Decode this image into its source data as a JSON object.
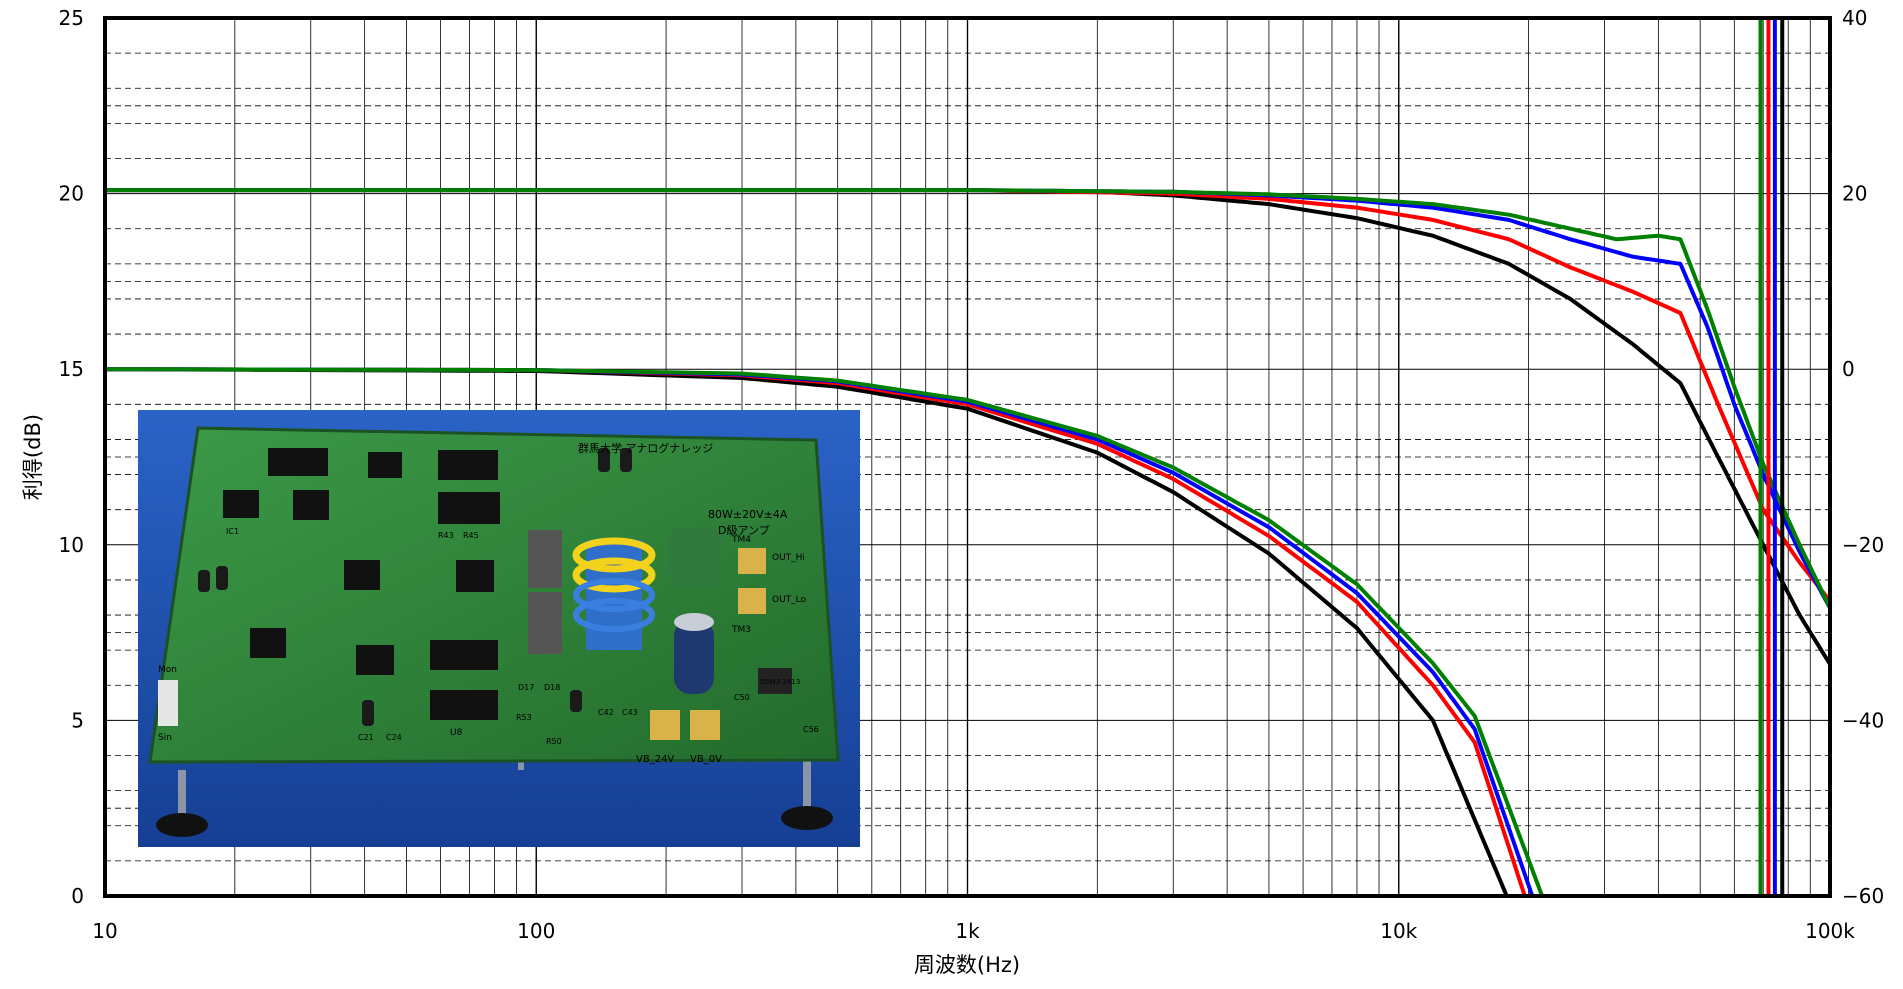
{
  "chart_data": {
    "type": "line",
    "x_scale": "log",
    "xlim": [
      10,
      100000
    ],
    "ylim_left": [
      0,
      25
    ],
    "ylim_right": [
      -60,
      40
    ],
    "xlabel": "周波数(Hz)",
    "ylabel": "利得(dB)",
    "x_ticks": [
      "10",
      "100",
      "1k",
      "10k",
      "100k"
    ],
    "y_ticks_left": [
      "0",
      "5",
      "10",
      "15",
      "20",
      "25"
    ],
    "y_ticks_right": [
      "−60",
      "−40",
      "−20",
      "0",
      "20",
      "40"
    ],
    "grid": true,
    "series_colors": [
      "#000000",
      "#ff0000",
      "#0000ff",
      "#008000"
    ],
    "gain_series_left_axis": [
      {
        "color": "#000000",
        "points": [
          [
            10,
            20.1
          ],
          [
            1000,
            20.1
          ],
          [
            2000,
            20.05
          ],
          [
            3000,
            19.95
          ],
          [
            5000,
            19.7
          ],
          [
            8000,
            19.3
          ],
          [
            12000,
            18.8
          ],
          [
            18000,
            18.0
          ],
          [
            25000,
            17.0
          ],
          [
            35000,
            15.7
          ],
          [
            45000,
            14.6
          ],
          [
            55000,
            12.5
          ],
          [
            70000,
            10.0
          ],
          [
            85000,
            8.0
          ],
          [
            100000,
            6.6
          ]
        ]
      },
      {
        "color": "#ff0000",
        "points": [
          [
            10,
            20.1
          ],
          [
            1000,
            20.1
          ],
          [
            3000,
            20.0
          ],
          [
            5000,
            19.85
          ],
          [
            8000,
            19.6
          ],
          [
            12000,
            19.25
          ],
          [
            18000,
            18.7
          ],
          [
            25000,
            17.9
          ],
          [
            35000,
            17.2
          ],
          [
            45000,
            16.6
          ],
          [
            55000,
            14.0
          ],
          [
            70000,
            11.0
          ],
          [
            85000,
            9.5
          ],
          [
            100000,
            8.4
          ]
        ]
      },
      {
        "color": "#0000ff",
        "points": [
          [
            10,
            20.1
          ],
          [
            1000,
            20.1
          ],
          [
            3000,
            20.05
          ],
          [
            5000,
            19.95
          ],
          [
            8000,
            19.8
          ],
          [
            12000,
            19.6
          ],
          [
            18000,
            19.25
          ],
          [
            25000,
            18.7
          ],
          [
            35000,
            18.2
          ],
          [
            45000,
            18.0
          ],
          [
            52000,
            16.2
          ],
          [
            60000,
            14.0
          ],
          [
            70000,
            12.0
          ],
          [
            85000,
            9.8
          ],
          [
            100000,
            8.2
          ]
        ]
      },
      {
        "color": "#008000",
        "points": [
          [
            10,
            20.1
          ],
          [
            1000,
            20.1
          ],
          [
            3000,
            20.05
          ],
          [
            5000,
            19.98
          ],
          [
            8000,
            19.85
          ],
          [
            12000,
            19.7
          ],
          [
            18000,
            19.4
          ],
          [
            25000,
            19.0
          ],
          [
            32000,
            18.7
          ],
          [
            40000,
            18.8
          ],
          [
            45000,
            18.7
          ],
          [
            52000,
            16.7
          ],
          [
            60000,
            14.5
          ],
          [
            70000,
            12.3
          ],
          [
            85000,
            10.0
          ],
          [
            100000,
            8.2
          ]
        ]
      }
    ],
    "gain_series_right_axis": [
      {
        "color": "#000000",
        "points": [
          [
            10,
            0.0
          ],
          [
            100,
            -0.2
          ],
          [
            300,
            -1.0
          ],
          [
            500,
            -2.0
          ],
          [
            1000,
            -4.5
          ],
          [
            2000,
            -9.5
          ],
          [
            3000,
            -14.0
          ],
          [
            5000,
            -21.0
          ],
          [
            8000,
            -29.5
          ],
          [
            12000,
            -40.0
          ],
          [
            17800,
            -60.0
          ]
        ]
      },
      {
        "color": "#ff0000",
        "points": [
          [
            10,
            0.0
          ],
          [
            100,
            -0.1
          ],
          [
            300,
            -0.7
          ],
          [
            500,
            -1.6
          ],
          [
            1000,
            -4.0
          ],
          [
            2000,
            -8.5
          ],
          [
            3000,
            -12.5
          ],
          [
            5000,
            -19.0
          ],
          [
            8000,
            -26.5
          ],
          [
            12000,
            -36.0
          ],
          [
            15000,
            -42.5
          ],
          [
            19600,
            -60.0
          ]
        ]
      },
      {
        "color": "#0000ff",
        "points": [
          [
            10,
            0.0
          ],
          [
            100,
            -0.1
          ],
          [
            300,
            -0.6
          ],
          [
            500,
            -1.4
          ],
          [
            1000,
            -3.7
          ],
          [
            2000,
            -8.0
          ],
          [
            3000,
            -11.8
          ],
          [
            5000,
            -18.0
          ],
          [
            8000,
            -25.5
          ],
          [
            12000,
            -34.5
          ],
          [
            15000,
            -41.0
          ],
          [
            20400,
            -60.0
          ]
        ]
      },
      {
        "color": "#008000",
        "points": [
          [
            10,
            0.0
          ],
          [
            100,
            -0.1
          ],
          [
            300,
            -0.5
          ],
          [
            500,
            -1.3
          ],
          [
            1000,
            -3.5
          ],
          [
            2000,
            -7.6
          ],
          [
            3000,
            -11.2
          ],
          [
            5000,
            -17.2
          ],
          [
            8000,
            -24.5
          ],
          [
            12000,
            -33.5
          ],
          [
            15000,
            -39.5
          ],
          [
            21500,
            -60.0
          ]
        ]
      }
    ],
    "phase_vertical_lines": [
      {
        "color": "#008000",
        "x": 69000
      },
      {
        "color": "#ff0000",
        "x": 72000
      },
      {
        "color": "#0000ff",
        "x": 74500
      },
      {
        "color": "#000000",
        "x": 77500
      }
    ]
  },
  "photo": {
    "board_title": "群馬大学 アナログナレッジ",
    "spec_line1": "80W±20V±4A",
    "spec_line2": "D級アンプ",
    "terminal_labels": [
      "VB_24V",
      "VB_0V"
    ],
    "io_labels": [
      "OUT_Hi",
      "OUT_Lo",
      "Mon",
      "Sin"
    ],
    "part_labels": [
      "TM4",
      "TM3",
      "U8",
      "R43",
      "R45",
      "C21",
      "C24",
      "C50",
      "C56",
      "R50",
      "R53",
      "D17",
      "D18",
      "C42",
      "C43",
      "IC1"
    ],
    "inductor_marking": "50W3 2413"
  },
  "colors": {
    "background": "#ffffff",
    "grid": "#000000",
    "photo_bg": "#1f55b8",
    "pcb": "#2f8a3a"
  }
}
